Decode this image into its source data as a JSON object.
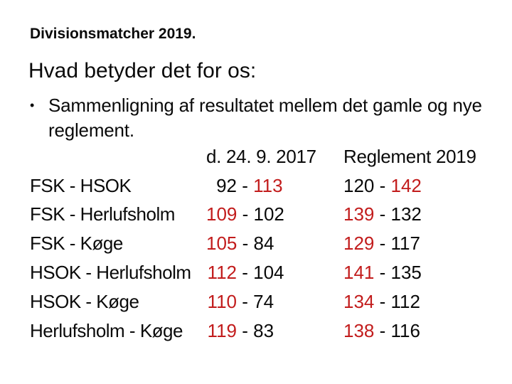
{
  "colors": {
    "background": "#FFFFFF",
    "text": "#0A0A0A",
    "winner_red": "#C21C1C"
  },
  "slide": {
    "title": "Divisionsmatcher 2019.",
    "heading": "Hvad betyder det for os:",
    "bullet_glyph": "•",
    "bullet_text": "Sammenligning af resultatet mellem det gamle og nye reglement."
  },
  "table": {
    "headers": {
      "old": "d. 24. 9. 2017",
      "new": "Reglement 2019"
    },
    "separator": "-",
    "rows": [
      {
        "match": "FSK - HSOK",
        "old": {
          "a": "92",
          "b": "113",
          "red": "b"
        },
        "new": {
          "a": "120",
          "b": "142",
          "red": "b"
        }
      },
      {
        "match": "FSK - Herlufsholm",
        "old": {
          "a": "109",
          "b": "102",
          "red": "a"
        },
        "new": {
          "a": "139",
          "b": "132",
          "red": "a"
        }
      },
      {
        "match": "FSK - Køge",
        "old": {
          "a": "105",
          "b": "84",
          "red": "a"
        },
        "new": {
          "a": "129",
          "b": "117",
          "red": "a"
        }
      },
      {
        "match": "HSOK - Herlufsholm",
        "old": {
          "a": "112",
          "b": "104",
          "red": "a"
        },
        "new": {
          "a": "141",
          "b": "135",
          "red": "a"
        }
      },
      {
        "match": "HSOK - Køge",
        "old": {
          "a": "110",
          "b": "74",
          "red": "a"
        },
        "new": {
          "a": "134",
          "b": "112",
          "red": "a"
        }
      },
      {
        "match": "Herlufsholm - Køge",
        "old": {
          "a": "119",
          "b": "83",
          "red": "a"
        },
        "new": {
          "a": "138",
          "b": "116",
          "red": "a"
        }
      }
    ]
  }
}
